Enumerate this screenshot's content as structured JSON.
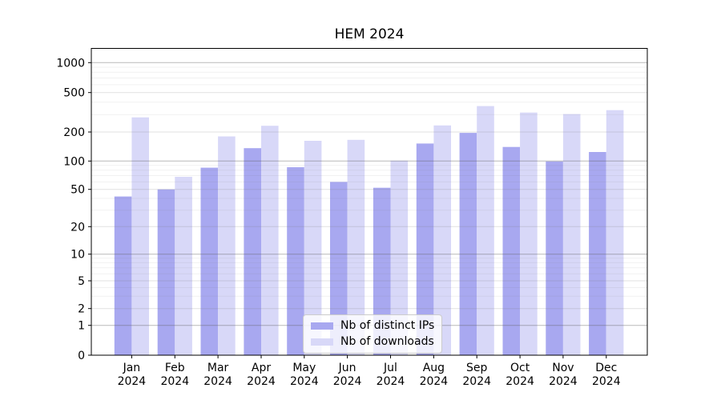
{
  "figure": {
    "title": "HEM 2024"
  },
  "chart_data": {
    "type": "bar",
    "title": "HEM 2024",
    "categories": [
      "Jan",
      "Feb",
      "Mar",
      "Apr",
      "May",
      "Jun",
      "Jul",
      "Aug",
      "Sep",
      "Oct",
      "Nov",
      "Dec"
    ],
    "x_tick_year_line": "2024",
    "series": [
      {
        "name": "Nb of distinct IPs",
        "color": "#a8a8f0",
        "values": [
          42,
          50,
          85,
          136,
          86,
          60,
          52,
          152,
          196,
          140,
          99,
          124
        ]
      },
      {
        "name": "Nb of downloads",
        "color": "#d8d8f8",
        "values": [
          281,
          68,
          180,
          231,
          162,
          166,
          101,
          233,
          365,
          314,
          303,
          332
        ]
      }
    ],
    "yscale": "symlog",
    "y_tick_values": [
      0,
      1,
      2,
      5,
      10,
      20,
      50,
      100,
      200,
      500,
      1000
    ],
    "ylim": [
      0,
      1400
    ],
    "xlabel": "",
    "ylabel": "",
    "grid": "both",
    "legend_position": "lower center",
    "grid_major_values": [
      1,
      10,
      100,
      1000
    ],
    "grid_mid_values": [
      2,
      5,
      20,
      50,
      200,
      500
    ],
    "grid_minor_values": [
      3,
      4,
      6,
      7,
      8,
      9,
      30,
      40,
      60,
      70,
      80,
      90,
      300,
      400,
      600,
      700,
      800,
      900
    ]
  }
}
